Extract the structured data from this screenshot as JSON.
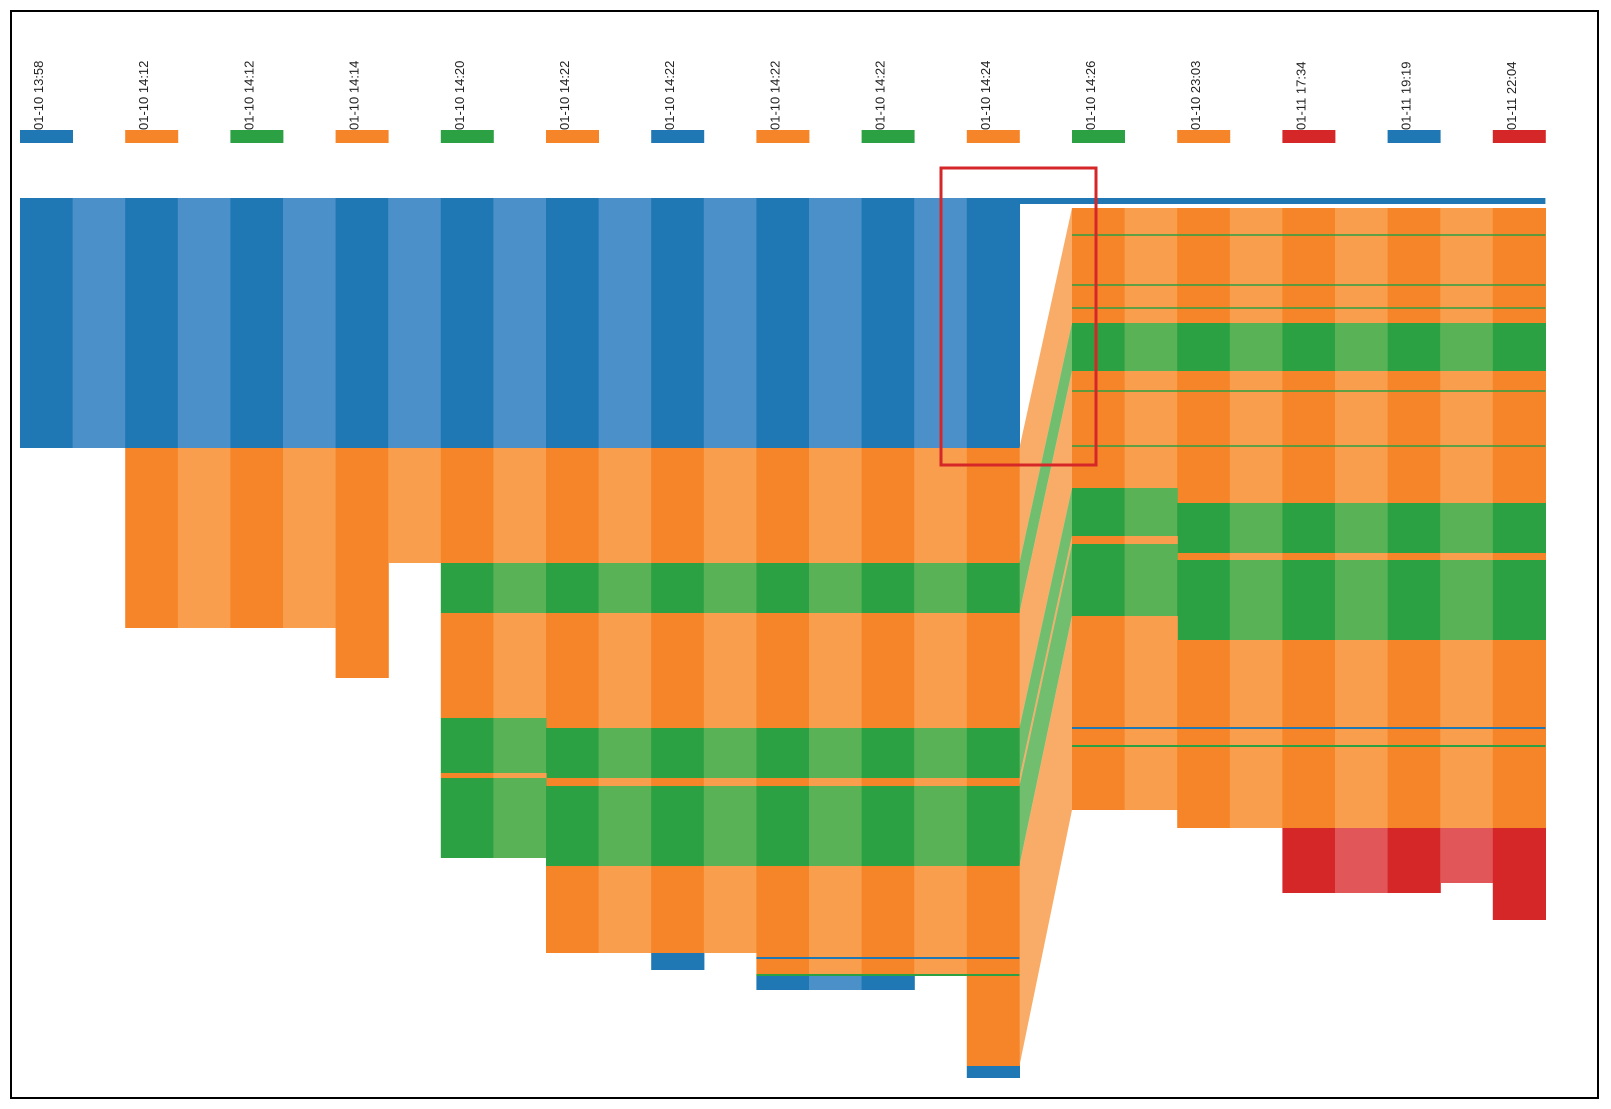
{
  "chart_data": {
    "type": "area",
    "title": "",
    "xlabel": "",
    "ylabel": "",
    "grid": false,
    "legend": "none",
    "colors": {
      "blue": "#1f77b4",
      "orange": "#f68428",
      "green": "#2ca143",
      "red": "#d62728",
      "highlight": "#d62728"
    },
    "categories": [
      {
        "label": "01-10 13:58",
        "color": "#1f77b4"
      },
      {
        "label": "01-10 14:12",
        "color": "#f68428"
      },
      {
        "label": "01-10 14:12",
        "color": "#2ca143"
      },
      {
        "label": "01-10 14:14",
        "color": "#f68428"
      },
      {
        "label": "01-10 14:20",
        "color": "#2ca143"
      },
      {
        "label": "01-10 14:22",
        "color": "#f68428"
      },
      {
        "label": "01-10 14:22",
        "color": "#1f77b4"
      },
      {
        "label": "01-10 14:22",
        "color": "#f68428"
      },
      {
        "label": "01-10 14:22",
        "color": "#2ca143"
      },
      {
        "label": "01-10 14:24",
        "color": "#f68428"
      },
      {
        "label": "01-10 14:26",
        "color": "#2ca143"
      },
      {
        "label": "01-10 23:03",
        "color": "#f68428"
      },
      {
        "label": "01-11 17:34",
        "color": "#d62728"
      },
      {
        "label": "01-11 19:19",
        "color": "#1f77b4"
      },
      {
        "label": "01-11 22:04",
        "color": "#d62728"
      }
    ],
    "left_bands": [
      {
        "color": "blue",
        "cols": [
          [
            0,
            18,
            0,
            250
          ]
        ]
      },
      {
        "color": "orange",
        "cols": [
          [
            2,
            18,
            250,
            365
          ],
          [
            2,
            5,
            365,
            430
          ],
          [
            6,
            6,
            365,
            480
          ]
        ]
      },
      {
        "color": "green",
        "cols": [
          [
            8,
            18,
            365,
            415
          ]
        ]
      },
      {
        "color": "orange",
        "cols": [
          [
            8,
            9,
            415,
            520
          ],
          [
            10,
            18,
            415,
            530
          ]
        ]
      },
      {
        "color": "green",
        "cols": [
          [
            8,
            9,
            520,
            575
          ],
          [
            10,
            18,
            530,
            580
          ]
        ]
      },
      {
        "color": "orange",
        "cols": [
          [
            8,
            9,
            575,
            580
          ],
          [
            10,
            18,
            580,
            588
          ]
        ]
      },
      {
        "color": "green",
        "cols": [
          [
            8,
            9,
            580,
            660
          ],
          [
            10,
            18,
            588,
            668
          ]
        ]
      },
      {
        "color": "orange",
        "cols": [
          [
            10,
            18,
            668,
            755
          ],
          [
            14,
            18,
            755,
            778
          ],
          [
            18,
            18,
            778,
            868
          ]
        ]
      },
      {
        "color": "blue",
        "cols": [
          [
            12,
            12,
            755,
            772
          ],
          [
            14,
            16,
            778,
            792
          ],
          [
            18,
            18,
            868,
            880
          ]
        ]
      }
    ],
    "right_bands": [
      {
        "color": "orange",
        "cols": [
          [
            20,
            28,
            10,
            125
          ]
        ]
      },
      {
        "color": "green",
        "cols": [
          [
            20,
            28,
            125,
            173
          ]
        ]
      },
      {
        "color": "orange",
        "cols": [
          [
            20,
            21,
            173,
            290
          ],
          [
            22,
            28,
            173,
            305
          ]
        ]
      },
      {
        "color": "green",
        "cols": [
          [
            20,
            21,
            290,
            338
          ],
          [
            22,
            28,
            305,
            355
          ]
        ]
      },
      {
        "color": "orange",
        "cols": [
          [
            20,
            21,
            338,
            346
          ],
          [
            22,
            28,
            355,
            362
          ]
        ]
      },
      {
        "color": "green",
        "cols": [
          [
            20,
            21,
            346,
            418
          ],
          [
            22,
            28,
            362,
            442
          ]
        ]
      },
      {
        "color": "orange",
        "cols": [
          [
            20,
            21,
            418,
            612
          ],
          [
            22,
            28,
            442,
            630
          ]
        ]
      },
      {
        "color": "red",
        "cols": [
          [
            24,
            26,
            630,
            695
          ],
          [
            27,
            27,
            630,
            685
          ],
          [
            28,
            28,
            630,
            722
          ]
        ]
      }
    ]
  }
}
